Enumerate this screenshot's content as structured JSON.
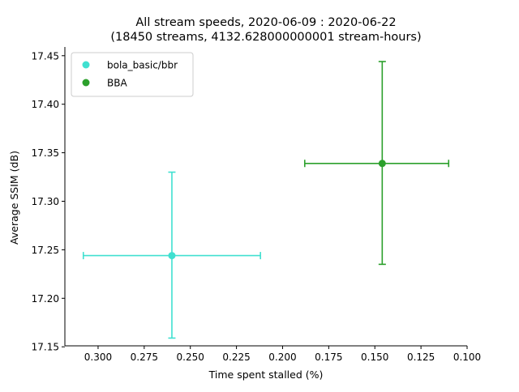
{
  "chart_data": {
    "type": "scatter",
    "title": "All stream speeds, 2020-06-09 : 2020-06-22",
    "subtitle": "(18450 streams, 4132.628000000001 stream-hours)",
    "xlabel": "Time spent stalled (%)",
    "ylabel": "Average SSIM (dB)",
    "x_inverted": true,
    "xlim": [
      0.318,
      0.1
    ],
    "ylim": [
      17.151,
      17.459
    ],
    "x_ticks": [
      0.3,
      0.275,
      0.25,
      0.225,
      0.2,
      0.175,
      0.15,
      0.125,
      0.1
    ],
    "x_tick_labels": [
      "0.300",
      "0.275",
      "0.250",
      "0.225",
      "0.200",
      "0.175",
      "0.150",
      "0.125",
      "0.100"
    ],
    "y_ticks": [
      17.15,
      17.2,
      17.25,
      17.3,
      17.35,
      17.4,
      17.45
    ],
    "y_tick_labels": [
      "17.15",
      "17.20",
      "17.25",
      "17.30",
      "17.35",
      "17.40",
      "17.45"
    ],
    "grid": false,
    "legend_position": "top-left",
    "series": [
      {
        "name": "bola_basic/bbr",
        "color": "#40e0d0",
        "x": 0.26,
        "y": 17.244,
        "x_err": [
          0.212,
          0.308
        ],
        "y_err": [
          17.159,
          17.33
        ]
      },
      {
        "name": "BBA",
        "color": "#2ca02c",
        "x": 0.146,
        "y": 17.339,
        "x_err": [
          0.11,
          0.188
        ],
        "y_err": [
          17.235,
          17.444
        ]
      }
    ]
  }
}
